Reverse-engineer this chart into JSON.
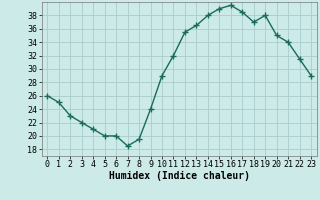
{
  "x": [
    0,
    1,
    2,
    3,
    4,
    5,
    6,
    7,
    8,
    9,
    10,
    11,
    12,
    13,
    14,
    15,
    16,
    17,
    18,
    19,
    20,
    21,
    22,
    23
  ],
  "y": [
    26,
    25,
    23,
    22,
    21,
    20,
    20,
    18.5,
    19.5,
    24,
    29,
    32,
    35.5,
    36.5,
    38,
    39,
    39.5,
    38.5,
    37,
    38,
    35,
    34,
    31.5,
    29
  ],
  "line_color": "#1a6b5a",
  "marker": "+",
  "marker_size": 4,
  "marker_lw": 1.0,
  "line_width": 1.0,
  "background_color": "#cceae7",
  "grid_color": "#aacccc",
  "xlabel": "Humidex (Indice chaleur)",
  "ylim": [
    17,
    40
  ],
  "xlim": [
    -0.5,
    23.5
  ],
  "yticks": [
    18,
    20,
    22,
    24,
    26,
    28,
    30,
    32,
    34,
    36,
    38
  ],
  "xticks": [
    0,
    1,
    2,
    3,
    4,
    5,
    6,
    7,
    8,
    9,
    10,
    11,
    12,
    13,
    14,
    15,
    16,
    17,
    18,
    19,
    20,
    21,
    22,
    23
  ],
  "label_fontsize": 7,
  "tick_fontsize": 6
}
